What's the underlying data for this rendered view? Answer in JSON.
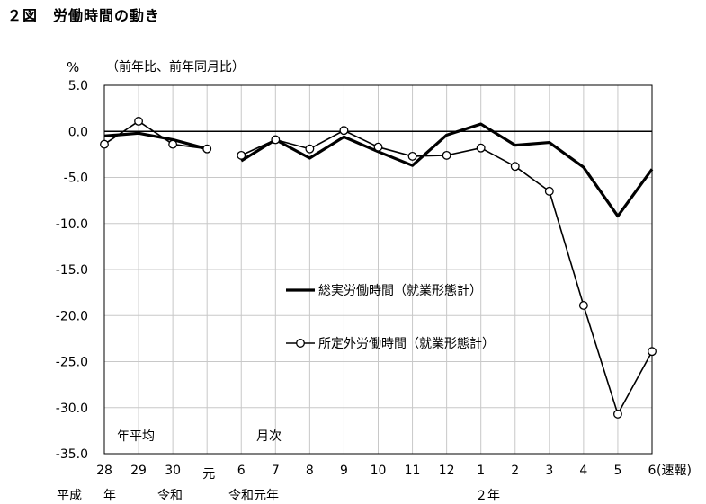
{
  "figure_title": "２図　労働時間の動き",
  "chart_data": {
    "type": "line",
    "y_unit": "%",
    "y_note": "（前年比、前年同月比）",
    "ylim": [
      -35,
      5
    ],
    "yticks": [
      "5.0",
      "0.0",
      "-5.0",
      "-10.0",
      "-15.0",
      "-20.0",
      "-25.0",
      "-30.0",
      "-35.0"
    ],
    "grid": true,
    "legend_position": "center-right",
    "section_labels": {
      "annual": "年平均",
      "monthly": "月次"
    },
    "categories": [
      "28",
      "29",
      "30",
      "元",
      "6",
      "7",
      "8",
      "9",
      "10",
      "11",
      "12",
      "1",
      "2",
      "3",
      "4",
      "5",
      "6"
    ],
    "category_suffix_last": "(速報)",
    "era_labels": {
      "heisei": "平成",
      "nen": "年",
      "reiwa": "令和",
      "reiwa_gannen": "令和元年",
      "year2": "２年"
    },
    "series": [
      {
        "name": "総実労働時間（就業形態計）",
        "marker": "none",
        "segments": [
          {
            "x": [
              "28",
              "29",
              "30",
              "元"
            ],
            "values": [
              -0.5,
              -0.2,
              -0.9,
              -1.9
            ]
          },
          {
            "x": [
              "6",
              "7",
              "8",
              "9",
              "10",
              "11",
              "12",
              "1",
              "2",
              "3",
              "4",
              "5",
              "6"
            ],
            "values": [
              -3.2,
              -0.9,
              -2.9,
              -0.6,
              -2.2,
              -3.7,
              -0.4,
              0.8,
              -1.5,
              -1.2,
              -3.9,
              -9.2,
              -4.1
            ]
          }
        ]
      },
      {
        "name": "所定外労働時間（就業形態計）",
        "marker": "open-circle",
        "segments": [
          {
            "x": [
              "28",
              "29",
              "30",
              "元"
            ],
            "values": [
              -1.4,
              1.1,
              -1.4,
              -1.9
            ]
          },
          {
            "x": [
              "6",
              "7",
              "8",
              "9",
              "10",
              "11",
              "12",
              "1",
              "2",
              "3",
              "4",
              "5",
              "6"
            ],
            "values": [
              -2.6,
              -0.9,
              -1.9,
              0.1,
              -1.7,
              -2.7,
              -2.6,
              -1.8,
              -3.8,
              -6.5,
              -18.9,
              -30.7,
              -23.9
            ]
          }
        ]
      }
    ]
  }
}
